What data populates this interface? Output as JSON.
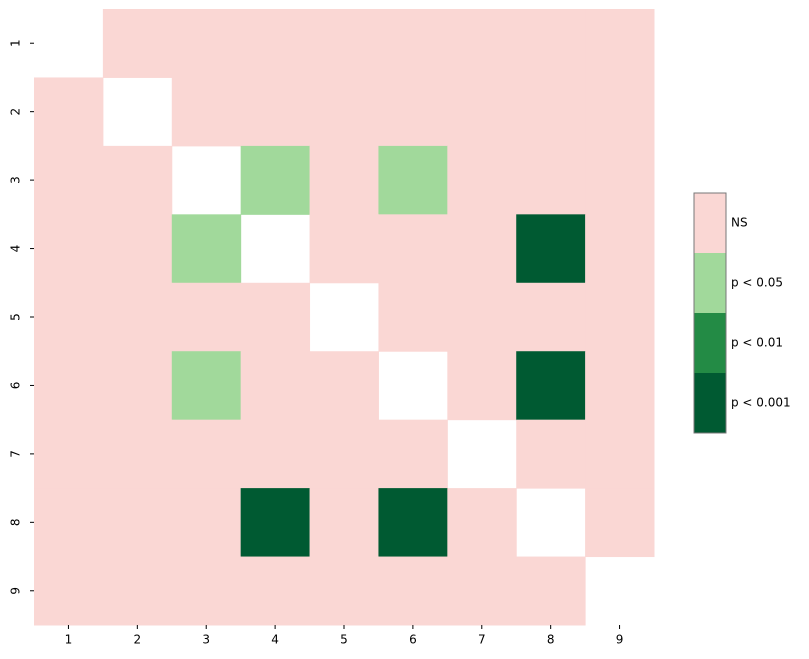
{
  "chart_data": {
    "type": "heatmap",
    "x": [
      1,
      2,
      3,
      4,
      5,
      6,
      7,
      8,
      9
    ],
    "y": [
      1,
      2,
      3,
      4,
      5,
      6,
      7,
      8,
      9
    ],
    "levels": [
      {
        "name": "NS",
        "color": "#fad7d4"
      },
      {
        "name": "p < 0.05",
        "color": "#a1d99b"
      },
      {
        "name": "p < 0.01",
        "color": "#238b45"
      },
      {
        "name": "p < 0.001",
        "color": "#005a32"
      }
    ],
    "z": [
      [
        null,
        0,
        0,
        0,
        0,
        0,
        0,
        0,
        0
      ],
      [
        0,
        null,
        0,
        0,
        0,
        0,
        0,
        0,
        0
      ],
      [
        0,
        0,
        null,
        1,
        0,
        1,
        0,
        0,
        0
      ],
      [
        0,
        0,
        1,
        null,
        0,
        0,
        0,
        3,
        0
      ],
      [
        0,
        0,
        0,
        0,
        null,
        0,
        0,
        0,
        0
      ],
      [
        0,
        0,
        1,
        0,
        0,
        null,
        0,
        3,
        0
      ],
      [
        0,
        0,
        0,
        0,
        0,
        0,
        null,
        0,
        0
      ],
      [
        0,
        0,
        0,
        3,
        0,
        3,
        0,
        null,
        0
      ],
      [
        0,
        0,
        0,
        0,
        0,
        0,
        0,
        0,
        null
      ]
    ]
  }
}
